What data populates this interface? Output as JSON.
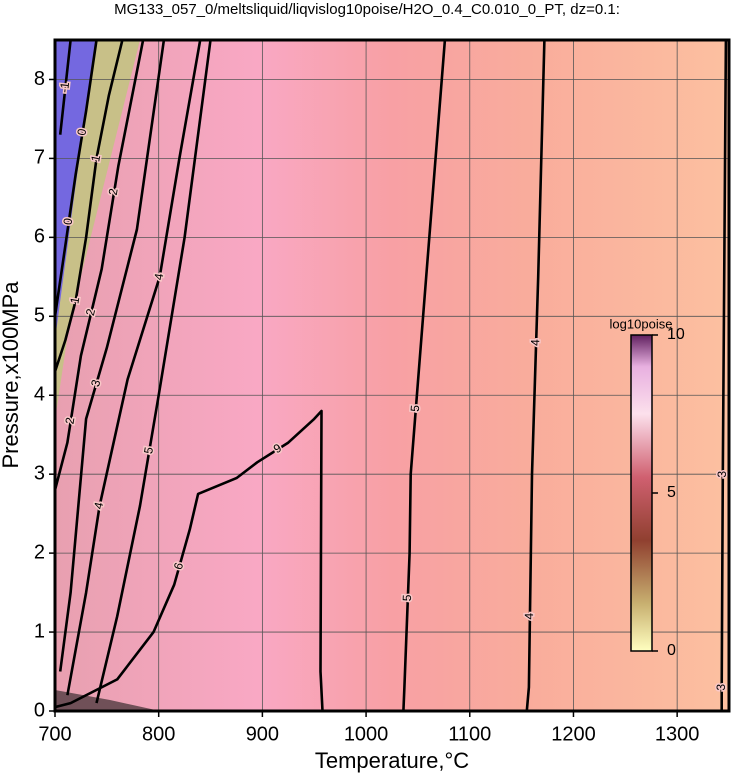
{
  "chart_data": {
    "type": "contour",
    "title": "MG133_057_0/meltsliquid/liqvislog10poise/H2O_0.4_C0.010_0_PT, dz=0.1:",
    "x_label": "Temperature,°C",
    "y_label": "Pressure,x100MPa",
    "xlim": [
      700,
      1350
    ],
    "ylim": [
      0,
      8.5
    ],
    "xticks": [
      700,
      800,
      900,
      1000,
      1100,
      1200,
      1300
    ],
    "yticks": [
      0,
      1,
      2,
      3,
      4,
      5,
      6,
      7,
      8
    ],
    "grid": true,
    "color": "#000000",
    "contours": [
      {
        "labels": [
          -1
        ],
        "x": [
          705,
          710,
          715
        ],
        "y": [
          7.3,
          7.9,
          8.5
        ]
      },
      {
        "labels": [
          0,
          0
        ],
        "x": [
          700,
          710,
          720,
          730,
          740
        ],
        "y": [
          5.0,
          5.9,
          6.8,
          7.6,
          8.5
        ]
      },
      {
        "labels": [
          1,
          1
        ],
        "x": [
          700,
          710,
          720,
          730,
          740,
          752,
          765
        ],
        "y": [
          4.3,
          4.7,
          5.2,
          6.0,
          7.0,
          7.8,
          8.5
        ]
      },
      {
        "labels": [
          2,
          2,
          2
        ],
        "x": [
          700,
          712,
          725,
          745,
          761,
          785
        ],
        "y": [
          2.8,
          3.4,
          4.5,
          5.6,
          6.9,
          8.5
        ]
      },
      {
        "labels": [
          3
        ],
        "x": [
          705,
          715,
          730,
          750,
          779,
          805
        ],
        "y": [
          0.5,
          1.5,
          3.7,
          4.6,
          6.1,
          8.5
        ]
      },
      {
        "labels": [
          4,
          4
        ],
        "x": [
          712,
          730,
          743,
          770,
          801,
          820,
          840
        ],
        "y": [
          0.2,
          1.5,
          2.6,
          4.2,
          5.5,
          7.0,
          8.5
        ]
      },
      {
        "labels": [
          5
        ],
        "x": [
          740,
          760,
          782,
          800,
          825,
          850
        ],
        "y": [
          0.1,
          1.2,
          2.6,
          4.0,
          6.0,
          8.5
        ]
      },
      {
        "labels": [
          6,
          9
        ],
        "x": [
          700,
          715,
          760,
          795,
          815,
          830,
          838,
          875,
          895,
          925,
          950,
          957,
          956,
          958
        ],
        "y": [
          0.05,
          0.1,
          0.4,
          1.0,
          1.6,
          2.3,
          2.75,
          2.95,
          3.15,
          3.4,
          3.7,
          3.8,
          0.5,
          0
        ]
      },
      {
        "labels": [
          5,
          5
        ],
        "x": [
          1036,
          1037,
          1042,
          1043,
          1058,
          1076
        ],
        "y": [
          0,
          0.3,
          2,
          3,
          5.5,
          8.5
        ]
      },
      {
        "labels": [
          4,
          4
        ],
        "x": [
          1155,
          1157,
          1160,
          1166,
          1172
        ],
        "y": [
          0,
          0.3,
          3,
          5.5,
          8.5
        ]
      },
      {
        "labels": [
          3,
          3
        ],
        "x": [
          1343,
          1343,
          1344,
          1347
        ],
        "y": [
          0,
          0.3,
          3,
          8.5
        ]
      }
    ],
    "colorbar": {
      "label": "log10poise",
      "lim": [
        0,
        10
      ],
      "ticks": [
        0,
        5,
        10
      ]
    }
  }
}
